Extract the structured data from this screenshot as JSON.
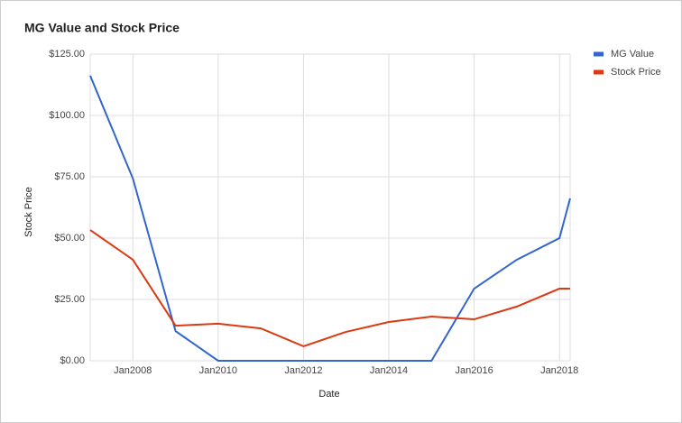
{
  "chart_data": {
    "type": "line",
    "title": "MG Value and Stock Price",
    "x_label": "Date",
    "y_label": "Stock Price",
    "x": [
      "2007-01",
      "2008-01",
      "2009-01",
      "2010-01",
      "2011-01",
      "2012-01",
      "2013-01",
      "2014-01",
      "2015-01",
      "2016-01",
      "2017-01",
      "2018-01",
      "2018-04"
    ],
    "series": [
      {
        "name": "MG Value",
        "color": "#3366cc",
        "values": [
          116.2,
          74.3,
          12.1,
          0,
          0,
          0,
          0,
          0,
          0,
          29.4,
          41.2,
          50,
          66.2
        ]
      },
      {
        "name": "Stock Price",
        "color": "#dc3912",
        "values": [
          53.3,
          41.2,
          14.3,
          15.1,
          13.2,
          5.9,
          11.8,
          15.8,
          18,
          16.9,
          22.1,
          29.4,
          29.4
        ]
      }
    ],
    "xlim": [
      "2007-01",
      "2018-04"
    ],
    "xticks": [
      {
        "value": "2008-01",
        "label": "Jan2008"
      },
      {
        "value": "2010-01",
        "label": "Jan2010"
      },
      {
        "value": "2012-01",
        "label": "Jan2012"
      },
      {
        "value": "2014-01",
        "label": "Jan2014"
      },
      {
        "value": "2016-01",
        "label": "Jan2016"
      },
      {
        "value": "2018-01",
        "label": "Jan2018"
      }
    ],
    "ylim": [
      0,
      125
    ],
    "yticks": [
      {
        "value": 0,
        "label": "$0.00"
      },
      {
        "value": 25,
        "label": "$25.00"
      },
      {
        "value": 50,
        "label": "$50.00"
      },
      {
        "value": 75,
        "label": "$75.00"
      },
      {
        "value": 100,
        "label": "$100.00"
      },
      {
        "value": 125,
        "label": "$125.00"
      }
    ],
    "grid": true,
    "legend": "right"
  }
}
